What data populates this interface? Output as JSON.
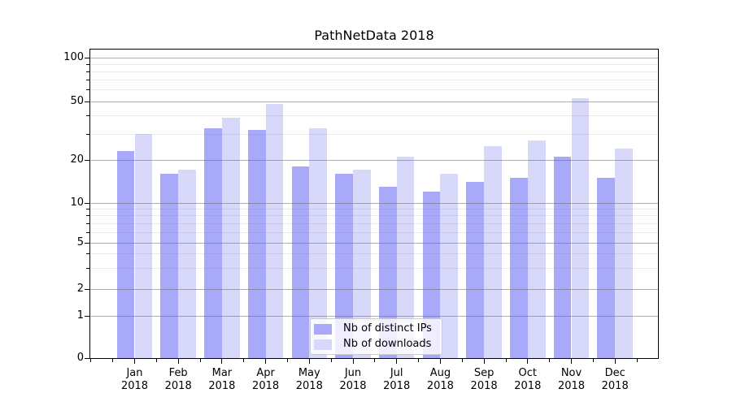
{
  "title": "PathNetData 2018",
  "chart_data": {
    "type": "bar",
    "title": "PathNetData 2018",
    "categories": [
      "Jan 2018",
      "Feb 2018",
      "Mar 2018",
      "Apr 2018",
      "May 2018",
      "Jun 2018",
      "Jul 2018",
      "Aug 2018",
      "Sep 2018",
      "Oct 2018",
      "Nov 2018",
      "Dec 2018"
    ],
    "x_tick_line1": [
      "Jan",
      "Feb",
      "Mar",
      "Apr",
      "May",
      "Jun",
      "Jul",
      "Aug",
      "Sep",
      "Oct",
      "Nov",
      "Dec"
    ],
    "x_tick_line2": [
      "2018",
      "2018",
      "2018",
      "2018",
      "2018",
      "2018",
      "2018",
      "2018",
      "2018",
      "2018",
      "2018",
      "2018"
    ],
    "series": [
      {
        "name": "Nb of distinct IPs",
        "color": "#a9a9f9",
        "values": [
          23,
          16,
          33,
          32,
          18,
          16,
          13,
          12,
          14,
          15,
          21,
          15
        ]
      },
      {
        "name": "Nb of downloads",
        "color": "#d8d8fa",
        "values": [
          30,
          17,
          39,
          48,
          33,
          17,
          21,
          16,
          25,
          27,
          53,
          24
        ]
      }
    ],
    "xlabel": "",
    "ylabel": "",
    "yscale": "log-1-2-5",
    "y_major_ticks": [
      100,
      50,
      20,
      10,
      5,
      2,
      1,
      0
    ],
    "y_minor_ticks": [
      90,
      80,
      70,
      60,
      40,
      30,
      9,
      8,
      7,
      6,
      4,
      3
    ],
    "ylim": [
      0,
      115
    ],
    "grid": "both",
    "legend": {
      "position": "lower center",
      "labels": [
        "Nb of distinct IPs",
        "Nb of downloads"
      ]
    }
  },
  "colors": {
    "bar_distinct_ips": "#a9a9f9",
    "bar_downloads": "#d8d8fa",
    "grid_major": "#b0b0b0",
    "grid_minor": "#ebebeb",
    "spine": "#000000",
    "legend_border": "#cccccc",
    "background": "#ffffff"
  }
}
